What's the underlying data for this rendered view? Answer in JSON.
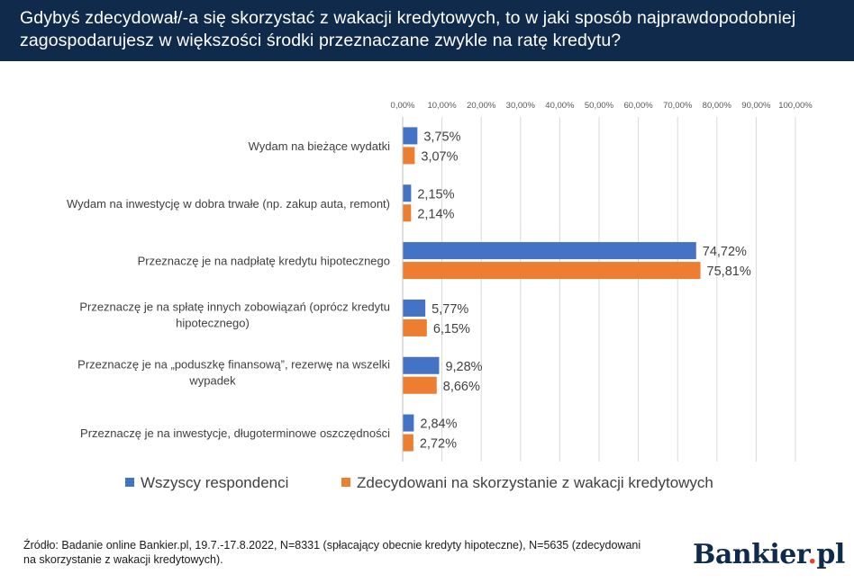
{
  "header": {
    "title": "Gdybyś zdecydował/-a się skorzystać z wakacji kredytowych, to w jaki sposób najprawdopodobniej zagospodarujesz w większości środki przeznaczane zwykle na ratę kredytu?"
  },
  "chart_data": {
    "type": "bar",
    "orientation": "horizontal",
    "categories": [
      [
        "Wydam na bieżące wydatki"
      ],
      [
        "Wydam na inwestycję w dobra trwałe (np. zakup auta, remont)"
      ],
      [
        "Przeznaczę je na nadpłatę kredytu hipotecznego"
      ],
      [
        "Przeznaczę je na spłatę innych zobowiązań (oprócz kredytu",
        "hipotecznego)"
      ],
      [
        "Przeznaczę je na „poduszkę finansową”, rezerwę na wszelki",
        "wypadek"
      ],
      [
        "Przeznaczę je na inwestycje, długoterminowe oszczędności"
      ]
    ],
    "series": [
      {
        "name": "Wszyscy respondenci",
        "color": "#4472c4",
        "values": [
          3.75,
          2.15,
          74.72,
          5.77,
          9.28,
          2.84
        ],
        "labels": [
          "3,75%",
          "2,15%",
          "74,72%",
          "5,77%",
          "9,28%",
          "2,84%"
        ]
      },
      {
        "name": "Zdecydowani na skorzystanie z wakacji kredytowych",
        "color": "#ed7d31",
        "values": [
          3.07,
          2.14,
          75.81,
          6.15,
          8.66,
          2.72
        ],
        "labels": [
          "3,07%",
          "2,14%",
          "75,81%",
          "6,15%",
          "8,66%",
          "2,72%"
        ]
      }
    ],
    "xlim": [
      0,
      100
    ],
    "x_ticks": [
      "0,00%",
      "10,00%",
      "20,00%",
      "30,00%",
      "40,00%",
      "50,00%",
      "60,00%",
      "70,00%",
      "80,00%",
      "90,00%",
      "100,00%"
    ],
    "x_axis_position": "top",
    "grid": true,
    "legend_position": "bottom"
  },
  "footer": {
    "source": "Źródło: Badanie online Bankier.pl, 19.7.-17.8.2022, N=8331 (spłacający obecnie kredyty hipoteczne), N=5635 (zdecydowani na skorzystanie z wakacji kredytowych).",
    "logo_main": "Bankier",
    "logo_dot": ".",
    "logo_suffix": "pl"
  }
}
